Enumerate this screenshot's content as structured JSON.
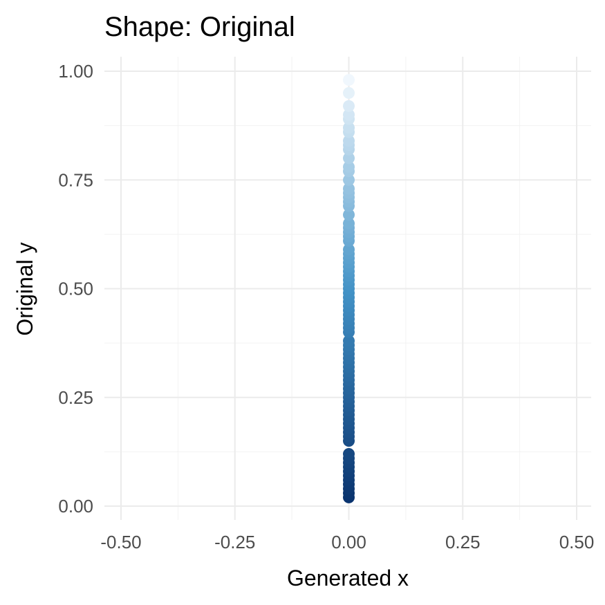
{
  "chart_data": {
    "type": "scatter",
    "title": "Shape: Original",
    "xlabel": "Generated x",
    "ylabel": "Original y",
    "xlim": [
      -0.5,
      0.5
    ],
    "ylim": [
      0.0,
      1.0
    ],
    "x_ticks": [
      "-0.50",
      "-0.25",
      "0.00",
      "0.25",
      "0.50"
    ],
    "y_ticks": [
      "0.00",
      "0.25",
      "0.50",
      "0.75",
      "1.00"
    ],
    "grid": true,
    "color_scale": {
      "low": "#08306b",
      "mid": "#4292c6",
      "high": "#f7fbff",
      "mapped_to": "y"
    },
    "series": [
      {
        "x": [
          0,
          0,
          0,
          0,
          0,
          0,
          0,
          0,
          0,
          0,
          0,
          0,
          0,
          0,
          0,
          0,
          0,
          0,
          0,
          0,
          0,
          0,
          0,
          0,
          0,
          0,
          0,
          0,
          0,
          0,
          0,
          0,
          0,
          0,
          0,
          0,
          0,
          0,
          0,
          0,
          0,
          0,
          0,
          0,
          0,
          0,
          0,
          0,
          0,
          0,
          0,
          0,
          0,
          0,
          0,
          0,
          0,
          0,
          0,
          0,
          0,
          0,
          0,
          0,
          0,
          0,
          0,
          0,
          0,
          0,
          0,
          0,
          0,
          0,
          0,
          0,
          0,
          0,
          0,
          0
        ],
        "y": [
          0.02,
          0.03,
          0.04,
          0.05,
          0.06,
          0.07,
          0.08,
          0.09,
          0.1,
          0.11,
          0.12,
          0.15,
          0.16,
          0.17,
          0.18,
          0.19,
          0.2,
          0.21,
          0.22,
          0.23,
          0.24,
          0.25,
          0.26,
          0.27,
          0.28,
          0.29,
          0.3,
          0.31,
          0.32,
          0.33,
          0.34,
          0.35,
          0.36,
          0.37,
          0.38,
          0.4,
          0.41,
          0.42,
          0.43,
          0.44,
          0.45,
          0.46,
          0.47,
          0.48,
          0.49,
          0.5,
          0.51,
          0.52,
          0.53,
          0.54,
          0.55,
          0.56,
          0.57,
          0.58,
          0.59,
          0.61,
          0.62,
          0.63,
          0.64,
          0.65,
          0.67,
          0.69,
          0.7,
          0.71,
          0.72,
          0.73,
          0.75,
          0.77,
          0.78,
          0.8,
          0.82,
          0.83,
          0.84,
          0.86,
          0.87,
          0.89,
          0.9,
          0.92,
          0.95,
          0.98
        ]
      }
    ]
  }
}
